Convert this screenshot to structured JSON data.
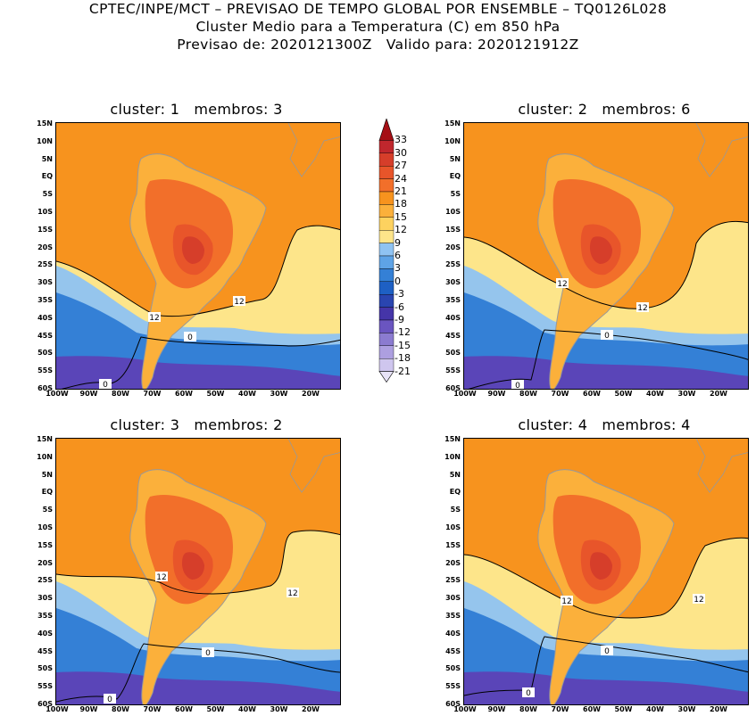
{
  "title": {
    "line1": "CPTEC/INPE/MCT – PREVISAO DE TEMPO GLOBAL POR ENSEMBLE – TQ0126L028",
    "line2": "Cluster Medio para a Temperatura (C) em 850 hPa",
    "line3": "Previsao de: 2020121300Z   Valido para: 2020121912Z"
  },
  "panels": [
    {
      "title": "cluster: 1   membros: 3"
    },
    {
      "title": "cluster: 2   membros: 6"
    },
    {
      "title": "cluster: 3   membros: 2"
    },
    {
      "title": "cluster: 4   membros: 4"
    }
  ],
  "contour_labels": [
    "12",
    "0"
  ],
  "axes": {
    "lat_labels": [
      "15N",
      "10N",
      "5N",
      "EQ",
      "5S",
      "10S",
      "15S",
      "20S",
      "25S",
      "30S",
      "35S",
      "40S",
      "45S",
      "50S",
      "55S",
      "60S"
    ],
    "lon_labels": [
      "100W",
      "90W",
      "80W",
      "70W",
      "60W",
      "50W",
      "40W",
      "30W",
      "20W"
    ]
  },
  "colorbar": {
    "labels": [
      "33",
      "30",
      "27",
      "24",
      "21",
      "18",
      "15",
      "12",
      "9",
      "6",
      "3",
      "0",
      "-3",
      "-6",
      "-9",
      "-12",
      "-15",
      "-18",
      "-21"
    ],
    "colors": [
      "#a50f15",
      "#c0272d",
      "#d63e2a",
      "#e8552a",
      "#f26f2a",
      "#f7931e",
      "#fbb03b",
      "#fdd25f",
      "#fde58a",
      "#8fc3f2",
      "#5ea3e6",
      "#3480d6",
      "#1e60c4",
      "#2a45b0",
      "#4535a8",
      "#6a55c0",
      "#8b7bd0",
      "#ad9fe0",
      "#cfc6ee",
      "#e8e3f7"
    ]
  },
  "colors": {
    "warm_core": "#cf1e1e",
    "orange": "#f7931e",
    "light_orange": "#fbb03b",
    "yellow": "#fde58a",
    "light_blue": "#8fc3f2",
    "blue": "#3480d6",
    "purple": "#5a45b8",
    "coast": "#999999",
    "contour": "#000000"
  }
}
